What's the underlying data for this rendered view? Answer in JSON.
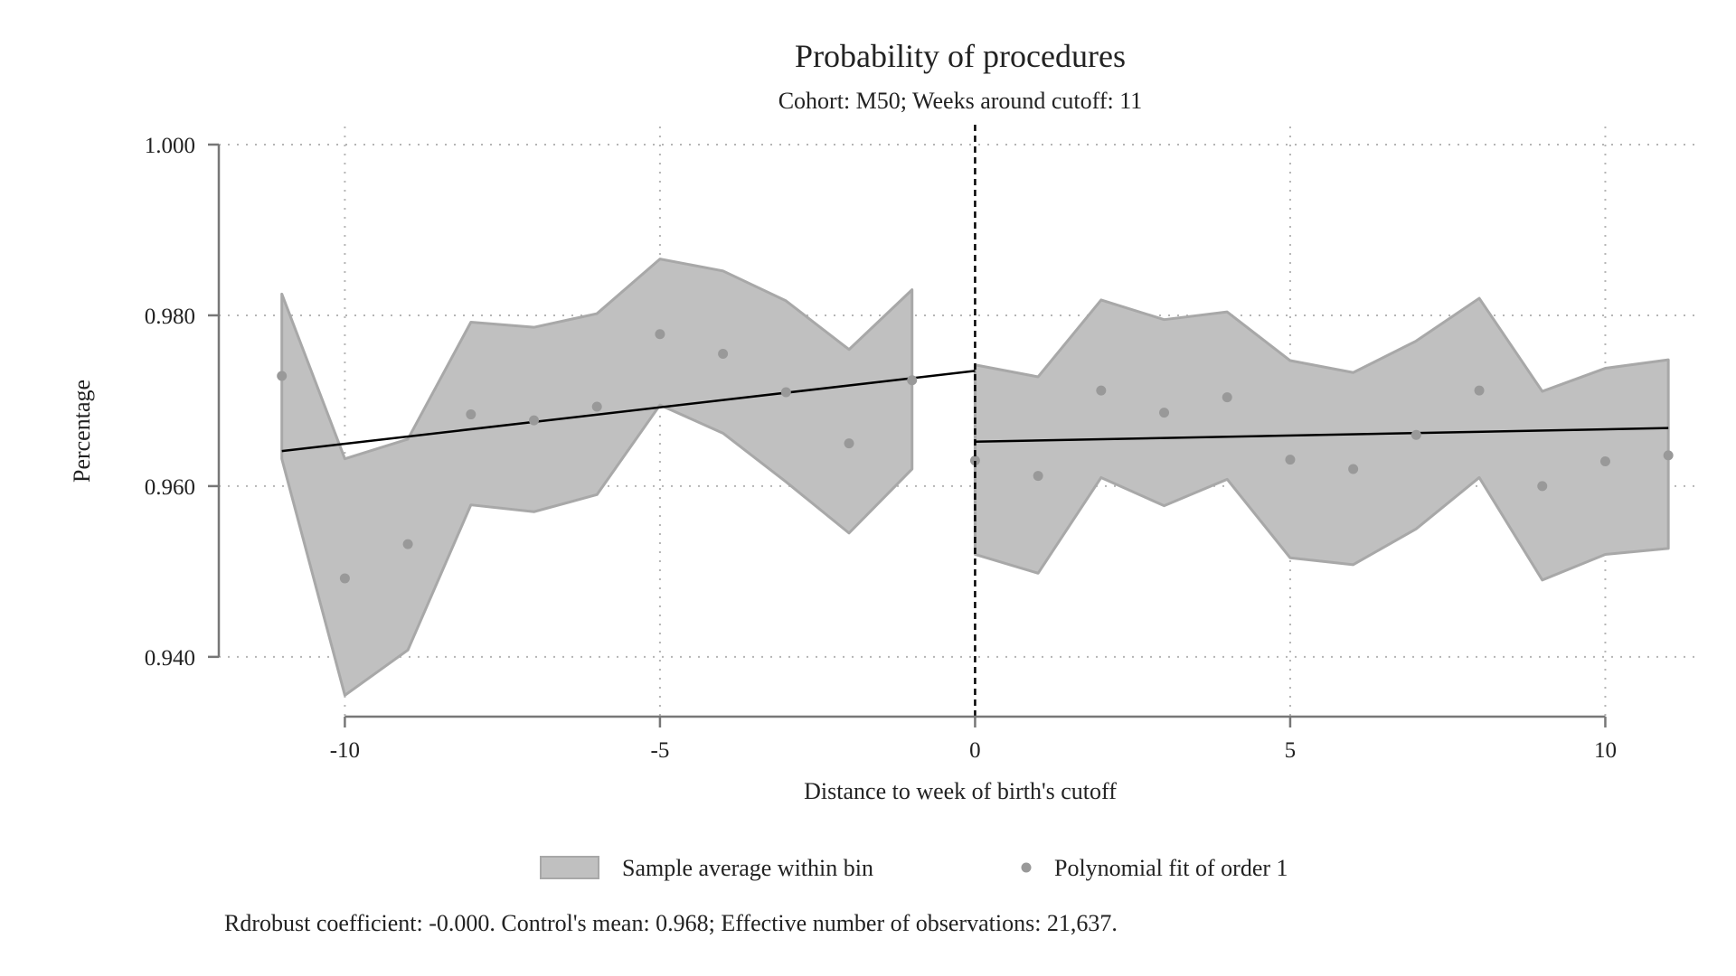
{
  "chart_data": {
    "type": "scatter",
    "title": "Probability of procedures",
    "subtitle": "Cohort: M50; Weeks around cutoff: 11",
    "xlabel": "Distance to week of birth's cutoff",
    "ylabel": "Percentage",
    "xlim": [
      -12,
      11.5
    ],
    "ylim": [
      0.933,
      1.0
    ],
    "x_ticks": [
      {
        "value": -10,
        "label": "-10"
      },
      {
        "value": -5,
        "label": "-5"
      },
      {
        "value": 0,
        "label": "0"
      },
      {
        "value": 5,
        "label": "5"
      },
      {
        "value": 10,
        "label": "10"
      }
    ],
    "y_ticks": [
      {
        "value": 0.94,
        "label": "0.940"
      },
      {
        "value": 0.96,
        "label": "0.960"
      },
      {
        "value": 0.98,
        "label": "0.980"
      },
      {
        "value": 1.0,
        "label": "1.000"
      }
    ],
    "grid": true,
    "cutoff_x": 0,
    "legend_position": "bottom",
    "legend": [
      {
        "label": "Sample average within bin",
        "marker": "area"
      },
      {
        "label": "Polynomial fit of order 1",
        "marker": "dot"
      }
    ],
    "colors": {
      "band": "#c0c0c0",
      "band_edge": "#a8a8a8",
      "points": "#999999",
      "fit": "#000000"
    },
    "left": {
      "x": [
        -11,
        -10,
        -9,
        -8,
        -7,
        -6,
        -5,
        -4,
        -3,
        -2,
        -1
      ],
      "points": [
        0.9729,
        0.9492,
        0.9532,
        0.9684,
        0.9677,
        0.9693,
        0.9778,
        0.9755,
        0.971,
        0.965,
        0.9724
      ],
      "ci_upper": [
        0.9825,
        0.9632,
        0.9655,
        0.9792,
        0.9786,
        0.9802,
        0.9866,
        0.9852,
        0.9817,
        0.976,
        0.983
      ],
      "ci_lower": [
        0.9632,
        0.9355,
        0.9408,
        0.9578,
        0.957,
        0.959,
        0.9695,
        0.9662,
        0.9605,
        0.9545,
        0.962
      ],
      "fit": [
        [
          -11,
          0.9641
        ],
        [
          0,
          0.9735
        ]
      ]
    },
    "right": {
      "x": [
        0,
        1,
        2,
        3,
        4,
        5,
        6,
        7,
        8,
        9,
        10,
        11
      ],
      "points": [
        0.963,
        0.9612,
        0.9712,
        0.9686,
        0.9704,
        0.9631,
        0.962,
        0.966,
        0.9712,
        0.96,
        0.9629,
        0.9636
      ],
      "ci_upper": [
        0.9742,
        0.9728,
        0.9818,
        0.9795,
        0.9804,
        0.9747,
        0.9733,
        0.977,
        0.982,
        0.9711,
        0.9738,
        0.9748
      ],
      "ci_lower": [
        0.952,
        0.9498,
        0.961,
        0.9577,
        0.9608,
        0.9516,
        0.9508,
        0.955,
        0.961,
        0.949,
        0.952,
        0.9527
      ],
      "fit": [
        [
          0,
          0.9652
        ],
        [
          11,
          0.9668
        ]
      ]
    },
    "note": "Rdrobust coefficient: -0.000. Control's mean: 0.968; Effective number of observations: 21,637."
  }
}
